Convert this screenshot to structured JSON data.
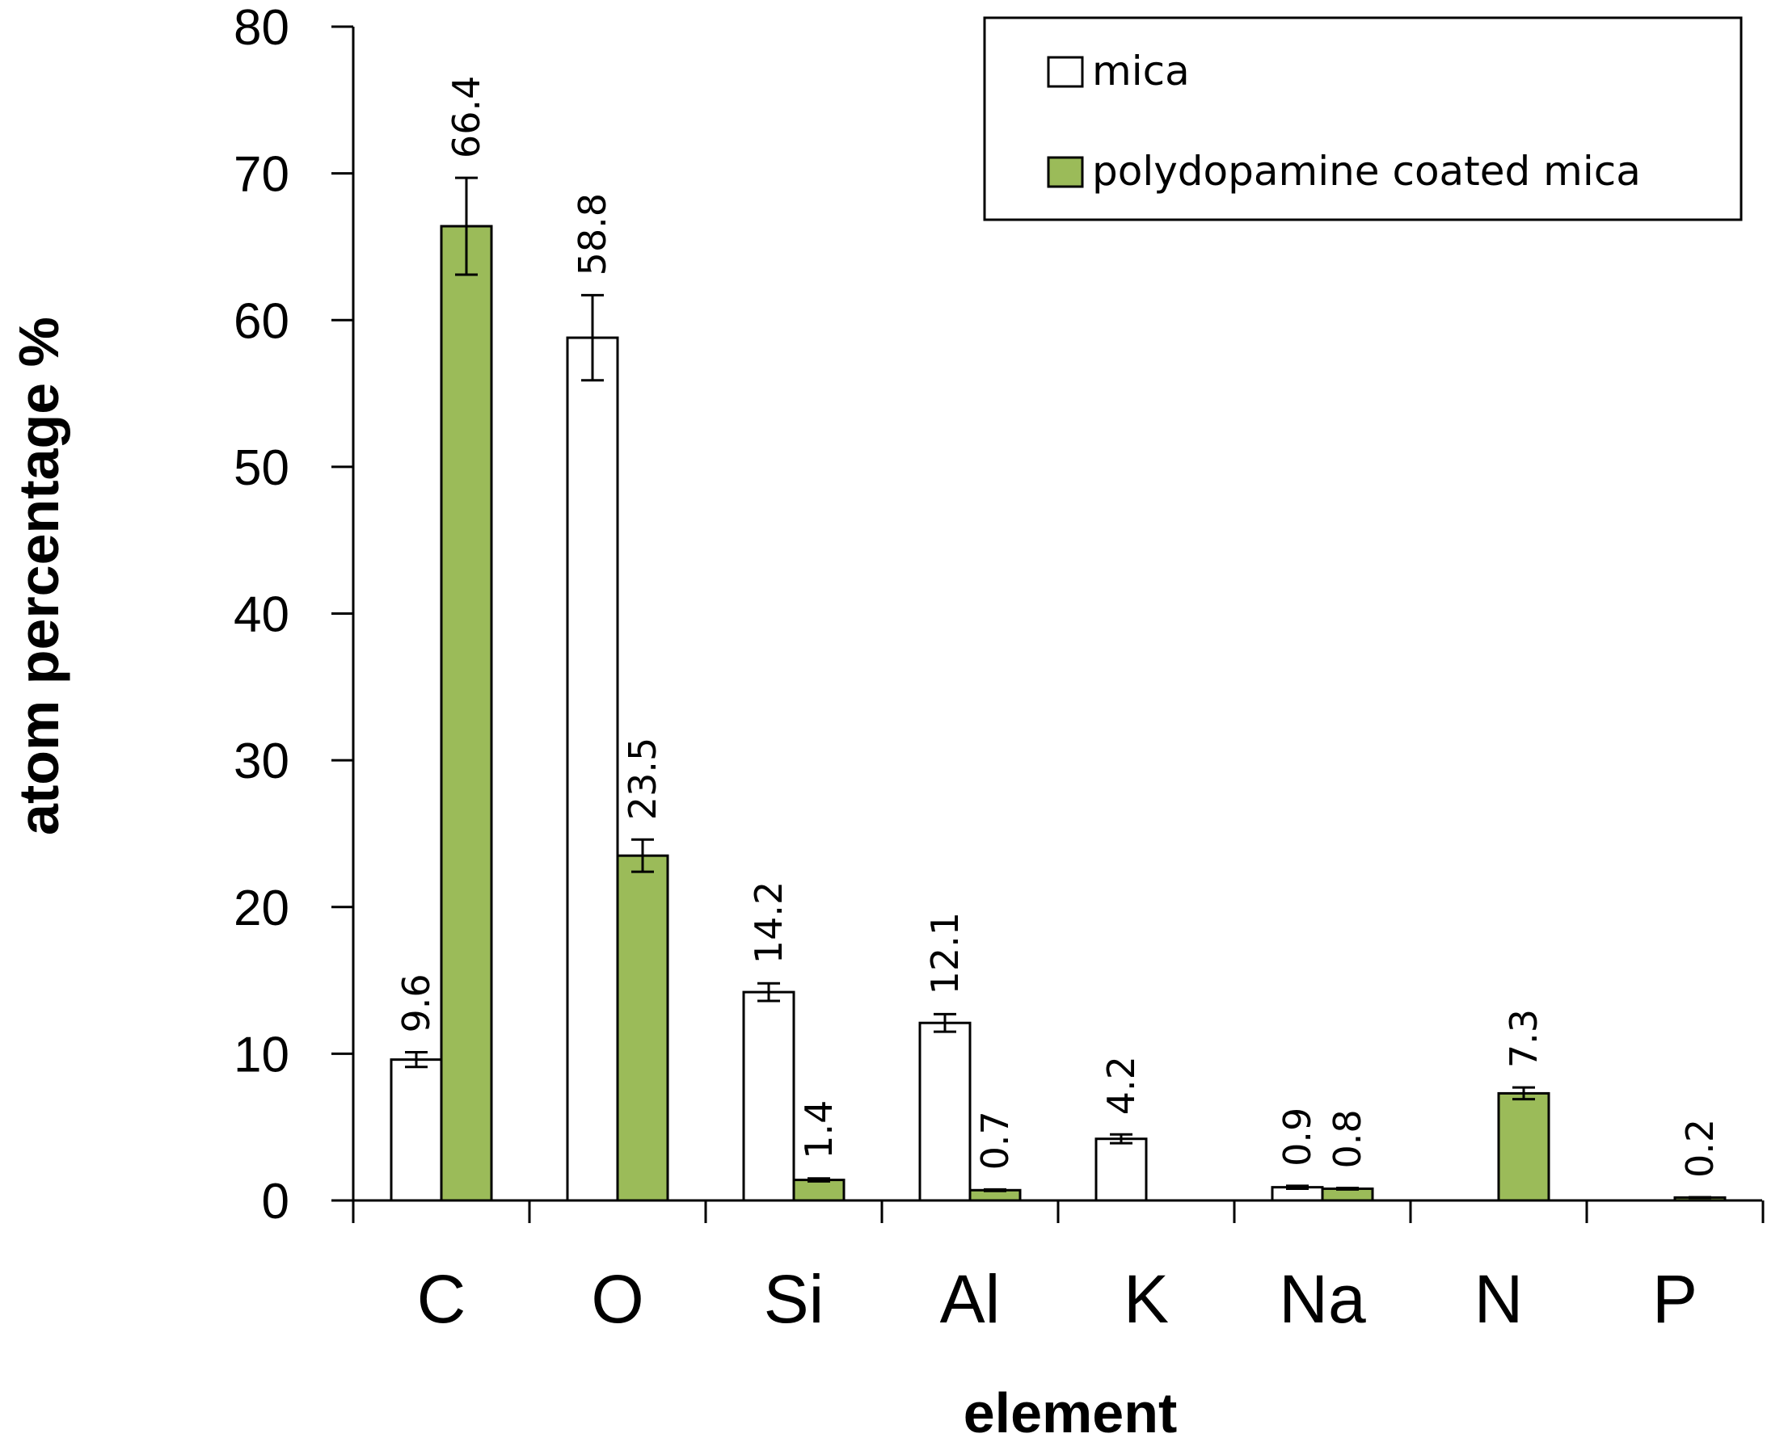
{
  "chart_data": {
    "type": "bar",
    "xlabel": "element",
    "ylabel": "atom percentage %",
    "ylim": [
      0,
      80
    ],
    "yticks": [
      0,
      10,
      20,
      30,
      40,
      50,
      60,
      70,
      80
    ],
    "categories": [
      "C",
      "O",
      "Si",
      "Al",
      "K",
      "Na",
      "N",
      "P"
    ],
    "series": [
      {
        "name": "mica",
        "color": "#ffffff",
        "values": [
          9.6,
          58.8,
          14.2,
          12.1,
          4.2,
          0.9,
          null,
          null
        ],
        "errors": [
          0.5,
          2.9,
          0.6,
          0.6,
          0.3,
          0.1,
          null,
          null
        ],
        "labels": [
          "9.6",
          "58.8",
          "14.2",
          "12.1",
          "4.2",
          "0.9",
          "",
          ""
        ]
      },
      {
        "name": "polydopamine coated mica",
        "color": "#9bbb59",
        "values": [
          66.4,
          23.5,
          1.4,
          0.7,
          null,
          0.8,
          7.3,
          0.2
        ],
        "errors": [
          3.3,
          1.1,
          0.1,
          0.05,
          null,
          0.05,
          0.4,
          0.02
        ],
        "labels": [
          "66.4",
          "23.5",
          "1.4",
          "0.7",
          "",
          "0.8",
          "7.3",
          "0.2"
        ]
      }
    ],
    "legend_position": "top-right",
    "grid": false
  }
}
